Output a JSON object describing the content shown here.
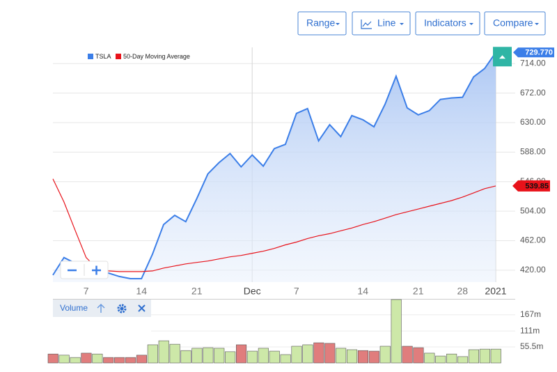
{
  "toolbar": {
    "buttons": [
      "Range",
      "Line",
      "Indicators",
      "Compare"
    ]
  },
  "volume_panel": {
    "title": "Volume"
  },
  "chart_data": {
    "type": "line",
    "categories": [
      null,
      null,
      null,
      "7",
      null,
      null,
      null,
      null,
      "14",
      null,
      null,
      null,
      null,
      "21",
      null,
      null,
      null,
      null,
      "Dec",
      null,
      null,
      null,
      "7",
      null,
      null,
      null,
      null,
      null,
      "14",
      null,
      null,
      null,
      null,
      "21",
      null,
      null,
      null,
      "28",
      null,
      null,
      "2021"
    ],
    "series": [
      {
        "name": "TSLA",
        "color": "#3b7ee8",
        "value_label": "729.770",
        "values": [
          413,
          438,
          430,
          420,
          416,
          416,
          411,
          408,
          408,
          443,
          485,
          498,
          489,
          522,
          557,
          573,
          586,
          567,
          584,
          568,
          593,
          599,
          643,
          650,
          604,
          627,
          610,
          640,
          634,
          624,
          656,
          696,
          651,
          641,
          647,
          663,
          665,
          666,
          695,
          707,
          729.77
        ]
      },
      {
        "name": "50-Day Moving Average",
        "color": "#e8121a",
        "values": [
          550,
          517,
          477,
          438,
          422,
          419,
          418,
          418,
          418,
          419,
          423,
          426,
          429,
          431,
          433,
          436,
          439,
          441,
          444,
          447,
          451,
          456,
          460,
          465,
          469,
          472,
          476,
          480,
          485,
          489,
          494,
          499,
          503,
          507,
          511,
          515,
          519,
          524,
          530,
          536,
          539.85
        ]
      }
    ],
    "ylim": [
      403,
      737
    ],
    "yticks": [
      {
        "value": 420,
        "label": "420.00"
      },
      {
        "value": 462,
        "label": "462.00"
      },
      {
        "value": 504,
        "label": "504.00"
      },
      {
        "value": 546,
        "label": "546.00"
      },
      {
        "value": 588,
        "label": "588.00"
      },
      {
        "value": 630,
        "label": "630.00"
      },
      {
        "value": 672,
        "label": "672.00"
      },
      {
        "value": 714,
        "label": "714.00"
      }
    ],
    "grid": true,
    "volume": {
      "type": "bar",
      "ylim": [
        0,
        220
      ],
      "yticks": [
        {
          "value": 55.5,
          "label": "55.5m"
        },
        {
          "value": 111,
          "label": "111m"
        },
        {
          "value": 167,
          "label": "167m"
        }
      ],
      "values": [
        31,
        27,
        19,
        34,
        31,
        19,
        19,
        19,
        27,
        63,
        77,
        65,
        43,
        51,
        53,
        51,
        39,
        63,
        41,
        51,
        41,
        29,
        58,
        63,
        70,
        68,
        51,
        46,
        43,
        41,
        58,
        220,
        58,
        53,
        34,
        24,
        31,
        22,
        46,
        48,
        48
      ],
      "colors": [
        "#e07d7d",
        "#cde8a8",
        "#cde8a8",
        "#e07d7d",
        "#cde8a8",
        "#e07d7d",
        "#e07d7d",
        "#e07d7d",
        "#e07d7d",
        "#cde8a8",
        "#cde8a8",
        "#cde8a8",
        "#cde8a8",
        "#cde8a8",
        "#cde8a8",
        "#cde8a8",
        "#cde8a8",
        "#e07d7d",
        "#cde8a8",
        "#cde8a8",
        "#cde8a8",
        "#cde8a8",
        "#cde8a8",
        "#cde8a8",
        "#e07d7d",
        "#e07d7d",
        "#cde8a8",
        "#cde8a8",
        "#e07d7d",
        "#e07d7d",
        "#cde8a8",
        "#cde8a8",
        "#e07d7d",
        "#e07d7d",
        "#cde8a8",
        "#cde8a8",
        "#cde8a8",
        "#cde8a8",
        "#cde8a8",
        "#cde8a8",
        "#cde8a8"
      ]
    }
  }
}
